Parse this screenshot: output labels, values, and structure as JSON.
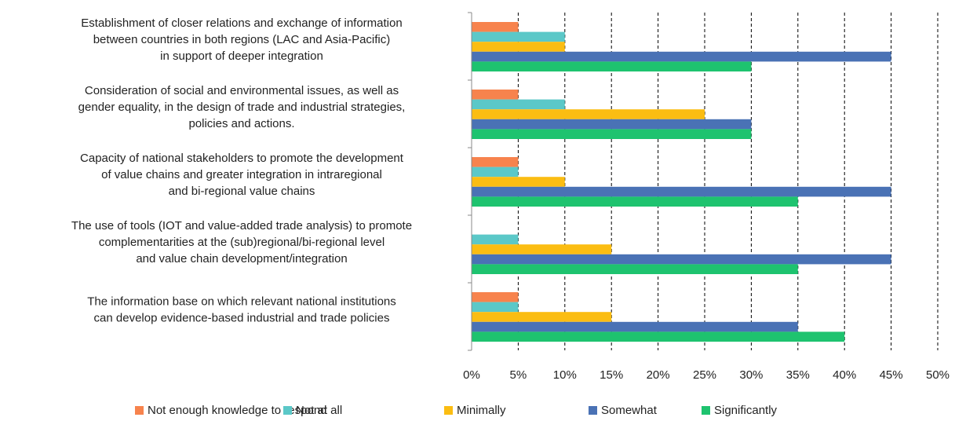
{
  "chart_data": {
    "type": "hbar",
    "categories": [
      [
        "Establishment of closer relations and exchange of information",
        "between countries in both regions (LAC and Asia-Pacific)",
        "in support of deeper integration"
      ],
      [
        "Consideration of social and environmental issues, as well as",
        "gender equality, in the design of trade and industrial strategies,",
        "policies and actions."
      ],
      [
        "Capacity of national stakeholders to promote the development",
        "of value chains and greater integration in intraregional",
        "and bi-regional value chains"
      ],
      [
        "The use of tools (IOT and value-added trade analysis) to promote",
        "complementarities at the (sub)regional/bi-regional level",
        "and value chain development/integration"
      ],
      [
        "The information base on which relevant national institutions",
        "can develop evidence-based industrial and trade policies"
      ]
    ],
    "series": [
      {
        "name": "Not enough knowledge to respond",
        "color": "#f7834d",
        "values": [
          5,
          5,
          5,
          0,
          5
        ]
      },
      {
        "name": "Not at all",
        "color": "#5bc8c8",
        "values": [
          10,
          10,
          5,
          5,
          5
        ]
      },
      {
        "name": "Minimally",
        "color": "#fbbd12",
        "values": [
          10,
          25,
          10,
          15,
          15
        ]
      },
      {
        "name": "Somewhat",
        "color": "#4a72b5",
        "values": [
          45,
          30,
          45,
          45,
          35
        ]
      },
      {
        "name": "Significantly",
        "color": "#1ec36f",
        "values": [
          30,
          30,
          35,
          35,
          40
        ]
      }
    ],
    "xlim": [
      0,
      50
    ],
    "xticks": [
      {
        "value": 0,
        "label": "0%"
      },
      {
        "value": 5,
        "label": "5%"
      },
      {
        "value": 10,
        "label": "10%"
      },
      {
        "value": 15,
        "label": "15%"
      },
      {
        "value": 20,
        "label": "20%"
      },
      {
        "value": 25,
        "label": "25%"
      },
      {
        "value": 30,
        "label": "30%"
      },
      {
        "value": 35,
        "label": "35%"
      },
      {
        "value": 40,
        "label": "40%"
      },
      {
        "value": 45,
        "label": "45%"
      },
      {
        "value": 50,
        "label": "50%"
      }
    ],
    "grid": true,
    "legend": "bottom"
  }
}
